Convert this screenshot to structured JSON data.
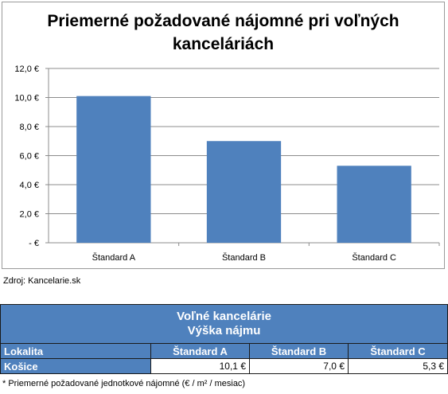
{
  "chart_data": {
    "type": "bar",
    "title": "Priemerné požadované nájomné pri voľných kanceláriách",
    "categories": [
      "Štandard A",
      "Štandard B",
      "Štandard C"
    ],
    "values": [
      10.1,
      7.0,
      5.3
    ],
    "ylim": [
      0,
      12
    ],
    "yticks": [
      0,
      2,
      4,
      6,
      8,
      10,
      12
    ],
    "ytick_labels": [
      "-  €",
      "2,0 €",
      "4,0 €",
      "6,0 €",
      "8,0 €",
      "10,0 €",
      "12,0 €"
    ],
    "grid": true,
    "bar_color": "#4f81bd",
    "grid_color": "#8c8c8c"
  },
  "source": "Zdroj: Kancelarie.sk",
  "table": {
    "title_line1": "Voľné kancelárie",
    "title_line2": "Výška nájmu",
    "headers": [
      "Lokalita",
      "Štandard A",
      "Štandard B",
      "Štandard C"
    ],
    "rows": [
      {
        "location": "Košice",
        "values": [
          "10,1 €",
          "7,0 €",
          "5,3 €"
        ]
      }
    ]
  },
  "footnote": "* Priemerné požadované jednotkové nájomné (€ / m² / mesiac)"
}
